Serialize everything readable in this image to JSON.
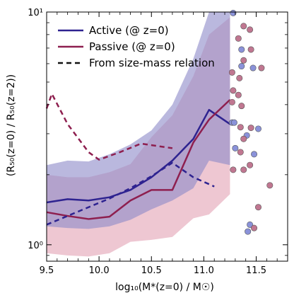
{
  "chart_data": {
    "type": "line",
    "xlabel": "log₁₀(M*(z=0) / M☉)",
    "ylabel": "(R₅₀(z=0) / R₅₀(z=2))",
    "xlim": [
      9.5,
      11.8
    ],
    "ylim": [
      0.85,
      10
    ],
    "yscale": "log",
    "x_ticks": [
      9.5,
      10.0,
      10.5,
      11.0,
      11.5
    ],
    "x_tick_labels": [
      "9.5",
      "10.0",
      "10.5",
      "11.0",
      "11.5"
    ],
    "y_ticks": [
      1,
      10
    ],
    "y_tick_labels": [
      "10⁰",
      "10¹"
    ],
    "grid": false,
    "legend_position": "top-left",
    "colors": {
      "active": "#2e2390",
      "passive": "#8e1f4f",
      "active_band": "#8c88c8",
      "passive_band": "#e3a2b4",
      "active_points": "#8a92d9",
      "passive_points": "#c07791"
    },
    "legend": [
      {
        "label": "Active (@ z=0)",
        "style": "solid",
        "color": "#2e2390"
      },
      {
        "label": "Passive (@ z=0)",
        "style": "solid",
        "color": "#8e1f4f"
      },
      {
        "label": "From size-mass relation",
        "style": "dashed",
        "color": "#111111"
      }
    ],
    "series": [
      {
        "name": "Active (@ z=0)",
        "style": "solid",
        "color": "#2e2390",
        "x": [
          9.5,
          9.7,
          9.9,
          10.1,
          10.3,
          10.5,
          10.7,
          10.9,
          11.05,
          11.25
        ],
        "y": [
          1.52,
          1.57,
          1.55,
          1.6,
          1.72,
          1.95,
          2.3,
          2.85,
          3.8,
          3.3
        ]
      },
      {
        "name": "Passive (@ z=0)",
        "style": "solid",
        "color": "#8e1f4f",
        "x": [
          9.5,
          9.7,
          9.9,
          10.1,
          10.3,
          10.5,
          10.7,
          10.9,
          11.05,
          11.25
        ],
        "y": [
          1.38,
          1.33,
          1.29,
          1.32,
          1.55,
          1.72,
          1.72,
          2.75,
          3.45,
          4.2
        ]
      },
      {
        "name": "Active (@ z=0)",
        "style": "dashed",
        "color": "#2e2390",
        "x": [
          9.5,
          9.7,
          9.9,
          10.1,
          10.3,
          10.5,
          10.7,
          10.9,
          11.1
        ],
        "y": [
          1.22,
          1.33,
          1.45,
          1.58,
          1.75,
          1.97,
          2.25,
          1.95,
          1.78
        ]
      },
      {
        "name": "Passive (@ z=0)",
        "style": "dashed",
        "color": "#8e1f4f",
        "x": [
          9.5,
          9.55,
          9.7,
          9.9,
          10.0,
          10.2,
          10.4,
          10.7
        ],
        "y": [
          3.85,
          4.45,
          3.3,
          2.5,
          2.32,
          2.5,
          2.72,
          2.6
        ]
      }
    ],
    "bands": [
      {
        "name": "Active (@ z=0)",
        "color": "#8c88c8",
        "x": [
          9.5,
          9.7,
          9.9,
          10.1,
          10.3,
          10.5,
          10.7,
          10.9,
          11.05,
          11.25
        ],
        "lower": [
          1.2,
          1.18,
          1.17,
          1.2,
          1.28,
          1.42,
          1.55,
          1.75,
          2.3,
          2.2
        ],
        "upper": [
          2.2,
          2.3,
          2.28,
          2.45,
          2.7,
          3.1,
          4.0,
          6.3,
          10.5,
          10.5
        ]
      },
      {
        "name": "Passive (@ z=0)",
        "color": "#e3a2b4",
        "x": [
          9.5,
          9.7,
          9.9,
          10.1,
          10.3,
          10.5,
          10.7,
          10.9,
          11.05,
          11.25
        ],
        "lower": [
          0.92,
          0.9,
          0.89,
          0.92,
          1.03,
          1.05,
          1.08,
          1.3,
          1.35,
          1.65
        ],
        "upper": [
          2.0,
          1.95,
          1.95,
          2.05,
          2.22,
          2.9,
          3.6,
          5.3,
          8.0,
          9.5
        ]
      }
    ],
    "scatter": [
      {
        "x": 11.28,
        "y": 9.9,
        "color": "#8a92d9"
      },
      {
        "x": 11.38,
        "y": 8.7,
        "color": "#c07791"
      },
      {
        "x": 11.44,
        "y": 8.4,
        "color": "#c07791"
      },
      {
        "x": 11.33,
        "y": 7.7,
        "color": "#c07791"
      },
      {
        "x": 11.36,
        "y": 6.9,
        "color": "#8a92d9"
      },
      {
        "x": 11.45,
        "y": 6.9,
        "color": "#c07791"
      },
      {
        "x": 11.38,
        "y": 6.2,
        "color": "#c07791"
      },
      {
        "x": 11.36,
        "y": 5.85,
        "color": "#8a92d9"
      },
      {
        "x": 11.47,
        "y": 5.75,
        "color": "#8a92d9"
      },
      {
        "x": 11.55,
        "y": 5.75,
        "color": "#c07791"
      },
      {
        "x": 11.27,
        "y": 5.5,
        "color": "#c07791"
      },
      {
        "x": 11.34,
        "y": 5.2,
        "color": "#c07791"
      },
      {
        "x": 11.28,
        "y": 4.6,
        "color": "#c07791"
      },
      {
        "x": 11.33,
        "y": 4.4,
        "color": "#c07791"
      },
      {
        "x": 11.27,
        "y": 4.1,
        "color": "#c07791"
      },
      {
        "x": 11.36,
        "y": 3.95,
        "color": "#c07791"
      },
      {
        "x": 11.27,
        "y": 3.35,
        "color": "#8a92d9"
      },
      {
        "x": 11.29,
        "y": 3.35,
        "color": "#8a92d9"
      },
      {
        "x": 11.35,
        "y": 3.2,
        "color": "#c07791"
      },
      {
        "x": 11.45,
        "y": 3.18,
        "color": "#c07791"
      },
      {
        "x": 11.52,
        "y": 3.15,
        "color": "#8a92d9"
      },
      {
        "x": 11.41,
        "y": 2.95,
        "color": "#8a92d9"
      },
      {
        "x": 11.38,
        "y": 2.85,
        "color": "#c07791"
      },
      {
        "x": 11.3,
        "y": 2.6,
        "color": "#8a92d9"
      },
      {
        "x": 11.35,
        "y": 2.5,
        "color": "#c07791"
      },
      {
        "x": 11.48,
        "y": 2.45,
        "color": "#8a92d9"
      },
      {
        "x": 11.44,
        "y": 2.2,
        "color": "#c07791"
      },
      {
        "x": 11.28,
        "y": 2.1,
        "color": "#c07791"
      },
      {
        "x": 11.38,
        "y": 2.1,
        "color": "#c07791"
      },
      {
        "x": 11.63,
        "y": 1.8,
        "color": "#c07791"
      },
      {
        "x": 11.52,
        "y": 1.45,
        "color": "#c07791"
      },
      {
        "x": 11.44,
        "y": 1.22,
        "color": "#8a92d9"
      },
      {
        "x": 11.42,
        "y": 1.14,
        "color": "#8a92d9"
      },
      {
        "x": 11.48,
        "y": 1.18,
        "color": "#c07791"
      }
    ]
  }
}
